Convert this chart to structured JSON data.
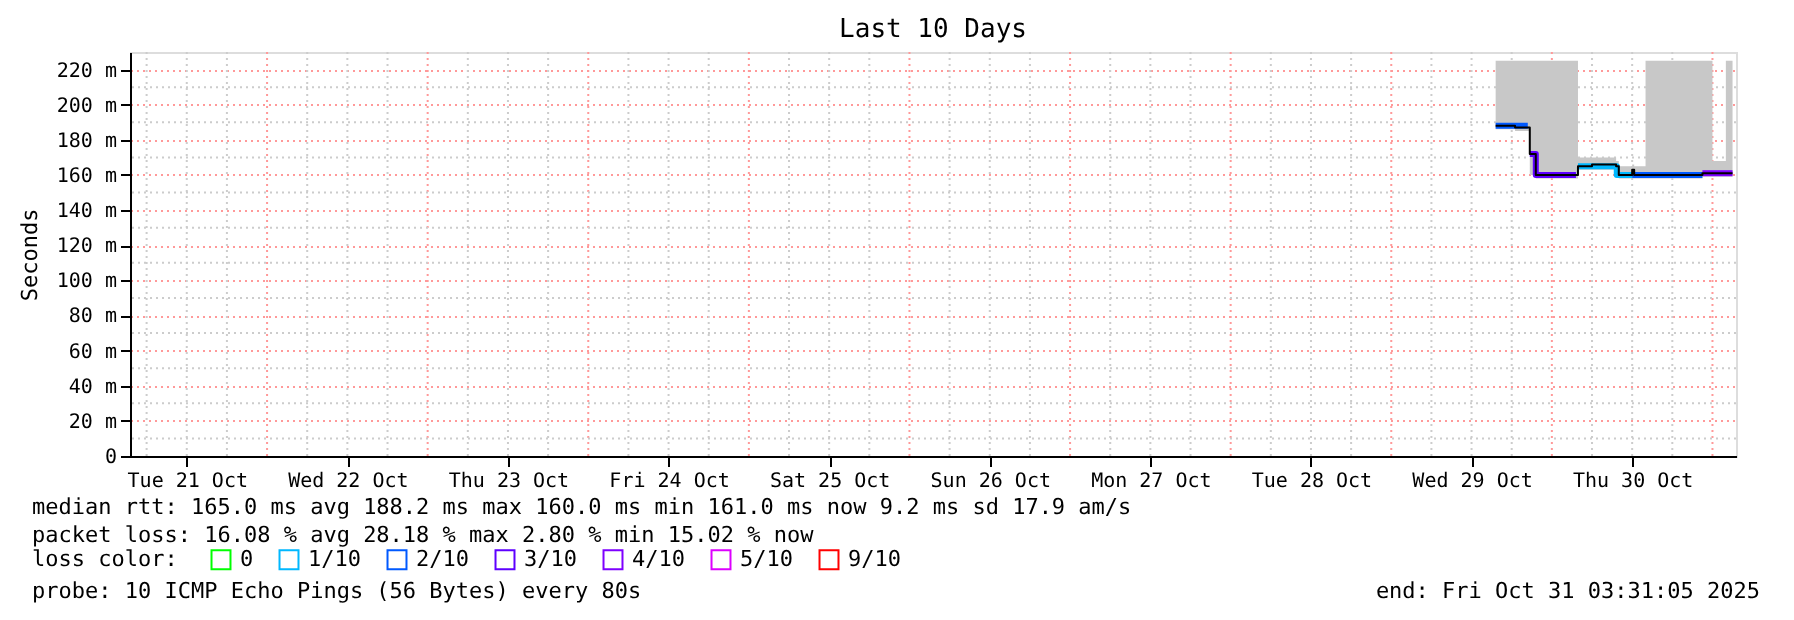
{
  "chart_data": {
    "type": "step",
    "title": "Last 10 Days",
    "ylabel": "Seconds",
    "legend_title": "loss color:",
    "legend": "bottom",
    "xlim": [
      "2025-10-21T03:31",
      "2025-10-31T03:31"
    ],
    "xticks": [
      {
        "value": "2025-10-21T12:00",
        "label": "Tue 21 Oct"
      },
      {
        "value": "2025-10-22T12:00",
        "label": "Wed 22 Oct"
      },
      {
        "value": "2025-10-23T12:00",
        "label": "Thu 23 Oct"
      },
      {
        "value": "2025-10-24T12:00",
        "label": "Fri 24 Oct"
      },
      {
        "value": "2025-10-25T12:00",
        "label": "Sat 25 Oct"
      },
      {
        "value": "2025-10-26T12:00",
        "label": "Sun 26 Oct"
      },
      {
        "value": "2025-10-27T12:00",
        "label": "Mon 27 Oct"
      },
      {
        "value": "2025-10-28T12:00",
        "label": "Tue 28 Oct"
      },
      {
        "value": "2025-10-29T12:00",
        "label": "Wed 29 Oct"
      },
      {
        "value": "2025-10-30T12:00",
        "label": "Thu 30 Oct"
      }
    ],
    "ylim": [
      0,
      230
    ],
    "yticks": [
      0,
      {
        "value": 20,
        "label": "20 m"
      },
      {
        "value": 40,
        "label": "40 m"
      },
      {
        "value": 60,
        "label": "60 m"
      },
      {
        "value": 80,
        "label": "80 m"
      },
      {
        "value": 100,
        "label": "100 m"
      },
      {
        "value": 120,
        "label": "120 m"
      },
      {
        "value": 140,
        "label": "140 m"
      },
      {
        "value": 160,
        "label": "160 m"
      },
      {
        "value": 180,
        "label": "180 m"
      },
      {
        "value": 200,
        "label": "200 m"
      },
      {
        "value": 220,
        "label": "220 m"
      }
    ],
    "grid": true,
    "series": [
      {
        "color": "#000000",
        "x": [
          "2025-10-29T15:36",
          "2025-10-29T17:00",
          "2025-10-29T18:30",
          "2025-10-29T20:24",
          "2025-10-29T20:42",
          "2025-10-29T21:36",
          "2025-10-30T00:00",
          "2025-10-30T02:00",
          "2025-10-30T03:36",
          "2025-10-30T03:54",
          "2025-10-30T06:00",
          "2025-10-30T09:36",
          "2025-10-30T10:00",
          "2025-10-30T12:00",
          "2025-10-30T12:18",
          "2025-10-30T14:00",
          "2025-10-30T16:00",
          "2025-10-30T18:00",
          "2025-10-30T20:00",
          "2025-10-30T22:30",
          "2025-10-31T00:00",
          "2025-10-31T02:00",
          "2025-10-31T03:00"
        ],
        "values": [
          188,
          188,
          187,
          187,
          172,
          160,
          160,
          160,
          160,
          165,
          166,
          165,
          160,
          163,
          160,
          160,
          160,
          160,
          160,
          161,
          161,
          161,
          161
        ],
        "upper": [
          225,
          225,
          225,
          225,
          225,
          225,
          225,
          225,
          225,
          170,
          170,
          168,
          165,
          166,
          165,
          225,
          225,
          225,
          225,
          225,
          168,
          225,
          168
        ],
        "lower": [
          186,
          186,
          185,
          185,
          160,
          158,
          158,
          158,
          158,
          163,
          163,
          162,
          158,
          158,
          158,
          158,
          158,
          158,
          158,
          159,
          159,
          159,
          159
        ]
      },
      {
        "name": "0",
        "color": "#00ff00"
      },
      {
        "name": "1/10",
        "color": "#00b8ff",
        "x": [
          "2025-10-30T03:54",
          "2025-10-30T09:36",
          "2025-10-30T09:42",
          "2025-10-30T12:00"
        ],
        "values": [
          165,
          165,
          160,
          160
        ]
      },
      {
        "name": "2/10",
        "color": "#0059ff",
        "x": [
          "2025-10-29T15:36",
          "2025-10-29T20:24",
          "2025-10-29T20:30",
          "2025-10-30T12:00",
          "2025-10-30T22:30"
        ],
        "values": [
          188,
          188,
          null,
          160,
          160
        ]
      },
      {
        "name": "3/10",
        "color": "#5e00ff",
        "x": [
          "2025-10-29T20:42",
          "2025-10-29T21:36",
          "2025-10-30T03:36"
        ],
        "values": [
          172,
          160,
          160
        ]
      },
      {
        "name": "4/10",
        "color": "#7e00ff",
        "x": [
          "2025-10-30T22:30",
          "2025-10-31T03:00"
        ],
        "values": [
          161,
          161
        ]
      },
      {
        "name": "5/10",
        "color": "#dd00ff"
      },
      {
        "name": "9/10",
        "color": "#ff0000"
      }
    ],
    "annotations": [
      "median rtt:  165.0 ms avg  188.2 ms max  160.0 ms min  161.0 ms now  9.2 ms sd  17.9   am/s",
      "packet loss: 16.08 % avg  28.18 % max  2.80 % min  15.02 % now",
      "probe:       10 ICMP Echo Pings (56 Bytes) every 80s",
      "end: Fri Oct 31 03:31:05 2025"
    ]
  }
}
